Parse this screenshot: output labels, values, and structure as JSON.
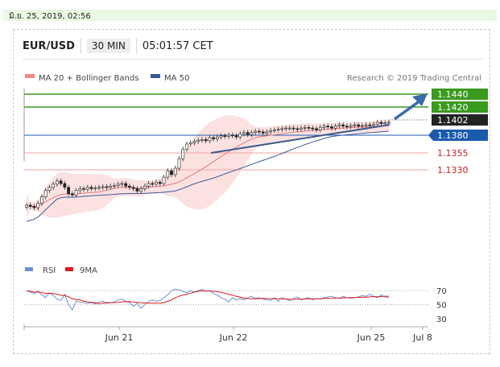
{
  "date_bar": {
    "text": "มิ.ย. 25, 2019, 02:56"
  },
  "header": {
    "pair": "EUR/USD",
    "timeframe": "30 MIN",
    "time": "05:01:57 CET"
  },
  "legend": {
    "ma20_label": "MA 20 + Bollinger Bands",
    "ma50_label": "MA 50",
    "ma20_color": "#f28b82",
    "ma50_color": "#3c5a9a"
  },
  "credit": "Research © 2019 Trading Central",
  "levels": [
    {
      "value": "1.1440",
      "color": "#3a9a1e",
      "style": "resistance-green"
    },
    {
      "value": "1.1420",
      "color": "#3a9a1e",
      "style": "resistance-green"
    },
    {
      "value": "1.1402",
      "color": "#222222",
      "style": "current"
    },
    {
      "value": "1.1380",
      "color": "#1a5aad",
      "style": "pivot-blue"
    },
    {
      "value": "1.1355",
      "color": "#cc1f1f",
      "style": "support-red"
    },
    {
      "value": "1.1330",
      "color": "#cc1f1f",
      "style": "support-red"
    }
  ],
  "rsi_legend": {
    "rsi_label": "RSI",
    "ma_label": "9MA",
    "rsi_color": "#6b8fd6",
    "ma_color": "#d91c1c"
  },
  "rsi_ticks": [
    "70",
    "50",
    "30"
  ],
  "x_ticks": [
    "Jun 21",
    "Jun 22",
    "Jun 25",
    "Jul 8"
  ],
  "chart_data": {
    "type": "candlestick",
    "title": "EUR/USD",
    "ylim": [
      1.12,
      1.1455
    ],
    "price_closes": [
      1.1272,
      1.127,
      1.1268,
      1.1275,
      1.1285,
      1.1295,
      1.13,
      1.1305,
      1.131,
      1.1306,
      1.13,
      1.129,
      1.1288,
      1.1295,
      1.1298,
      1.1297,
      1.13,
      1.1298,
      1.1299,
      1.13,
      1.1301,
      1.13,
      1.1302,
      1.1303,
      1.1305,
      1.1306,
      1.1302,
      1.13,
      1.1298,
      1.1294,
      1.1298,
      1.1302,
      1.1306,
      1.1305,
      1.1308,
      1.1306,
      1.1316,
      1.1326,
      1.132,
      1.133,
      1.1345,
      1.136,
      1.1368,
      1.137,
      1.1372,
      1.1374,
      1.1375,
      1.1373,
      1.1378,
      1.1376,
      1.1379,
      1.1381,
      1.138,
      1.1382,
      1.1381,
      1.1379,
      1.1384,
      1.1386,
      1.1383,
      1.1386,
      1.1388,
      1.1387,
      1.1385,
      1.1387,
      1.1389,
      1.139,
      1.1391,
      1.1392,
      1.1393,
      1.1393,
      1.1392,
      1.1391,
      1.1393,
      1.1394,
      1.1393,
      1.1392,
      1.139,
      1.1394,
      1.1396,
      1.1395,
      1.1393,
      1.1396,
      1.1398,
      1.1396,
      1.1395,
      1.1397,
      1.1398,
      1.1396,
      1.1397,
      1.1398,
      1.1397,
      1.1399,
      1.1402,
      1.14,
      1.1401,
      1.1402
    ],
    "resistances": [
      1.144,
      1.142
    ],
    "current_price": 1.1402,
    "pivot": 1.138,
    "supports": [
      1.1355,
      1.133
    ],
    "rsi_ylim": [
      20,
      85
    ],
    "rsi_levels": [
      70,
      50,
      30
    ],
    "rsi": [
      70,
      68,
      66,
      69,
      64,
      60,
      67,
      63,
      58,
      56,
      65,
      50,
      43,
      55,
      54,
      53,
      52,
      53,
      51,
      54,
      55,
      52,
      53,
      54,
      57,
      58,
      55,
      53,
      48,
      52,
      45,
      50,
      55,
      57,
      55,
      56,
      60,
      64,
      70,
      72,
      71,
      69,
      67,
      70,
      68,
      70,
      72,
      69,
      70,
      66,
      64,
      60,
      58,
      54,
      60,
      57,
      59,
      57,
      60,
      62,
      59,
      60,
      58,
      57,
      56,
      60,
      55,
      60,
      58,
      56,
      59,
      61,
      57,
      59,
      60,
      57,
      59,
      58,
      60,
      61,
      62,
      60,
      59,
      62,
      60,
      59,
      60,
      61,
      63,
      62,
      65,
      62,
      60,
      64,
      61,
      60
    ],
    "x_labels": [
      "Jun 21",
      "Jun 22",
      "Jun 25",
      "Jul 8"
    ]
  }
}
